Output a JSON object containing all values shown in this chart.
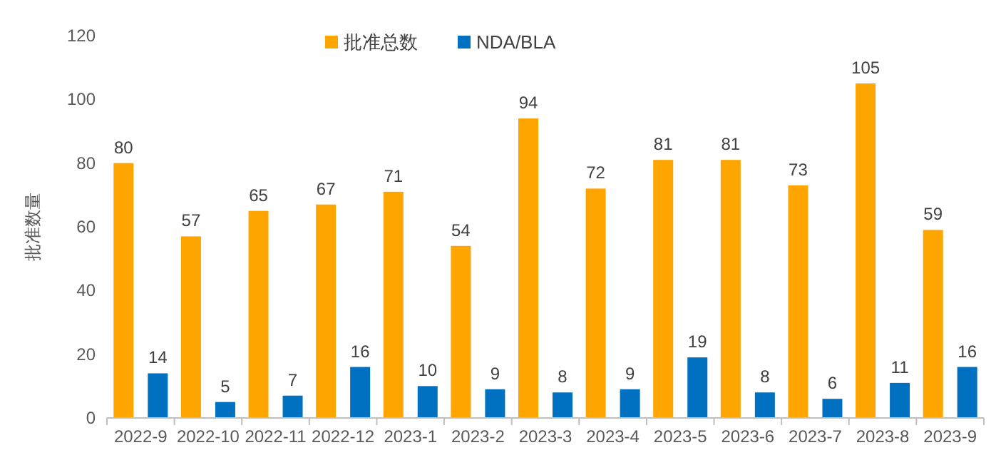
{
  "chart_data": {
    "type": "bar",
    "ylabel": "批准数量",
    "categories": [
      "2022-9",
      "2022-10",
      "2022-11",
      "2022-12",
      "2023-1",
      "2023-2",
      "2023-3",
      "2023-4",
      "2023-5",
      "2023-6",
      "2023-7",
      "2023-8",
      "2023-9"
    ],
    "series": [
      {
        "name": "批准总数",
        "color": "#ffa500",
        "values": [
          80,
          57,
          65,
          67,
          71,
          54,
          94,
          72,
          81,
          81,
          73,
          105,
          59
        ]
      },
      {
        "name": "NDA/BLA",
        "color": "#0070c0",
        "values": [
          14,
          5,
          7,
          16,
          10,
          9,
          8,
          9,
          19,
          8,
          6,
          11,
          16
        ]
      }
    ],
    "ylim": [
      0,
      120
    ],
    "yticks": [
      0,
      20,
      40,
      60,
      80,
      100,
      120
    ],
    "data_labels": true,
    "legend": "top",
    "grid": false
  }
}
